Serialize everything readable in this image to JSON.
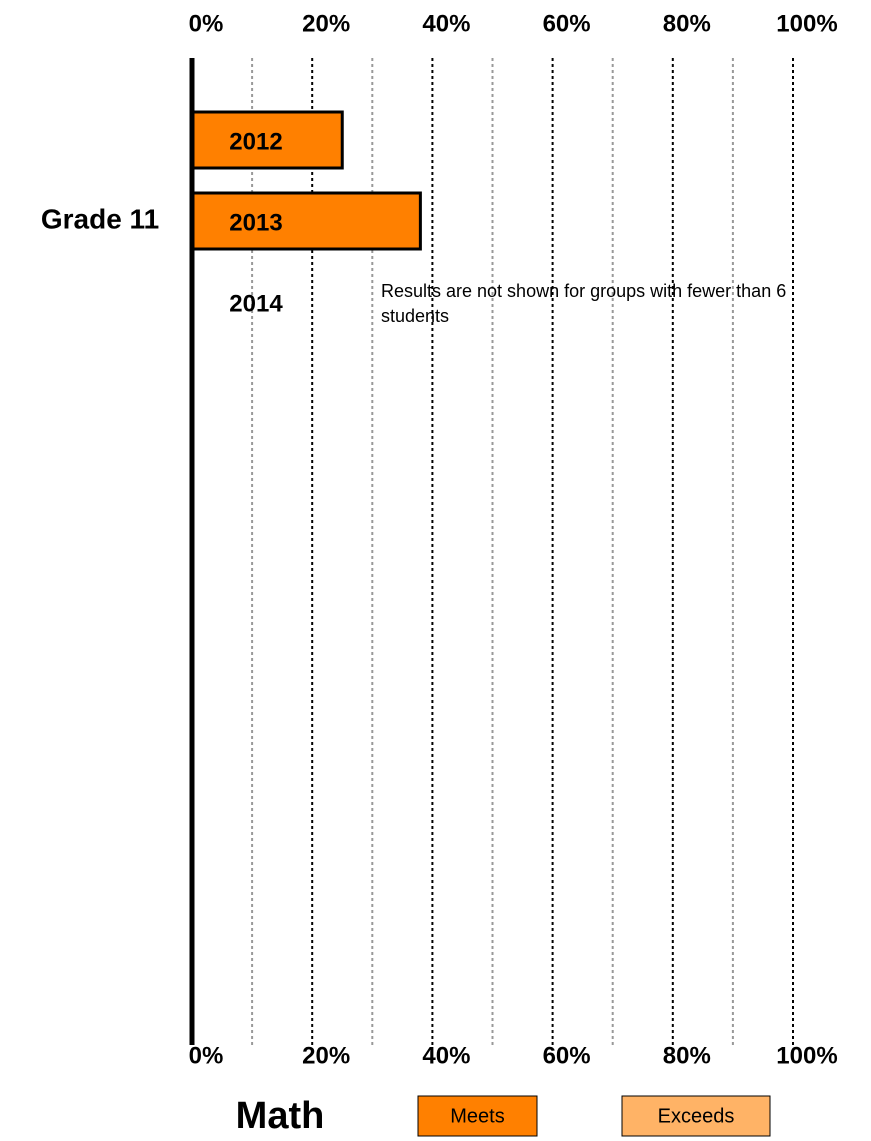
{
  "chart_data": {
    "type": "bar",
    "orientation": "horizontal",
    "stacked": true,
    "title": "Math",
    "group_label": "Grade 11",
    "categories": [
      "2012",
      "2013",
      "2014"
    ],
    "series": [
      {
        "name": "Meets",
        "color": "#ff8000",
        "values": [
          25,
          38,
          null
        ]
      },
      {
        "name": "Exceeds",
        "color": "#ffb366",
        "values": [
          null,
          null,
          null
        ]
      }
    ],
    "xlim": [
      0,
      100
    ],
    "xticks": [
      {
        "value": 0,
        "label": "0%"
      },
      {
        "value": 20,
        "label": "20%"
      },
      {
        "value": 40,
        "label": "40%"
      },
      {
        "value": 60,
        "label": "60%"
      },
      {
        "value": 80,
        "label": "80%"
      },
      {
        "value": 100,
        "label": "100%"
      }
    ],
    "minor_xticks": [
      10,
      30,
      50,
      70,
      90
    ],
    "grid": true,
    "annotation": "Results are not shown for groups with fewer than 6 students"
  }
}
